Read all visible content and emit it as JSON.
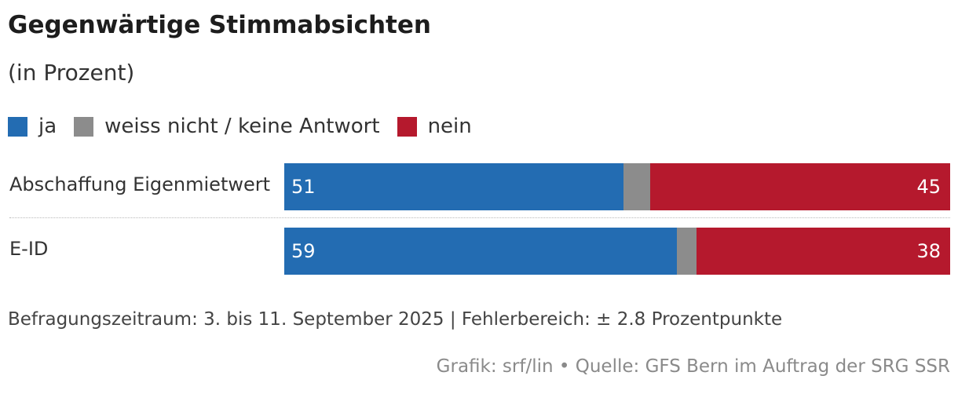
{
  "colors": {
    "ja": "#236cb2",
    "weiss_nicht": "#8c8c8c",
    "nein": "#b5192d"
  },
  "title": "Gegenwärtige Stimmabsichten",
  "subtitle": "(in Prozent)",
  "legend": [
    {
      "label": "ja",
      "color": "#236cb2"
    },
    {
      "label": "weiss nicht / keine Antwort",
      "color": "#8c8c8c"
    },
    {
      "label": "nein",
      "color": "#b5192d"
    }
  ],
  "note": "Befragungszeitraum: 3. bis 11. September 2025 | Fehlerbereich: ± 2.8 Prozentpunkte",
  "credit": "Grafik: srf/lin • Quelle: GFS Bern im Auftrag der SRG SSR",
  "chart_data": {
    "type": "bar",
    "orientation": "horizontal",
    "stacked": true,
    "title": "Gegenwärtige Stimmabsichten",
    "subtitle": "(in Prozent)",
    "categories": [
      "Abschaffung Eigenmietwert",
      "E-ID"
    ],
    "series": [
      {
        "name": "ja",
        "values": [
          51,
          59
        ]
      },
      {
        "name": "weiss nicht / keine Antwort",
        "values": [
          4,
          3
        ]
      },
      {
        "name": "nein",
        "values": [
          45,
          38
        ]
      }
    ],
    "xlim": [
      0,
      100
    ],
    "legend_position": "top-left",
    "grid": false
  }
}
